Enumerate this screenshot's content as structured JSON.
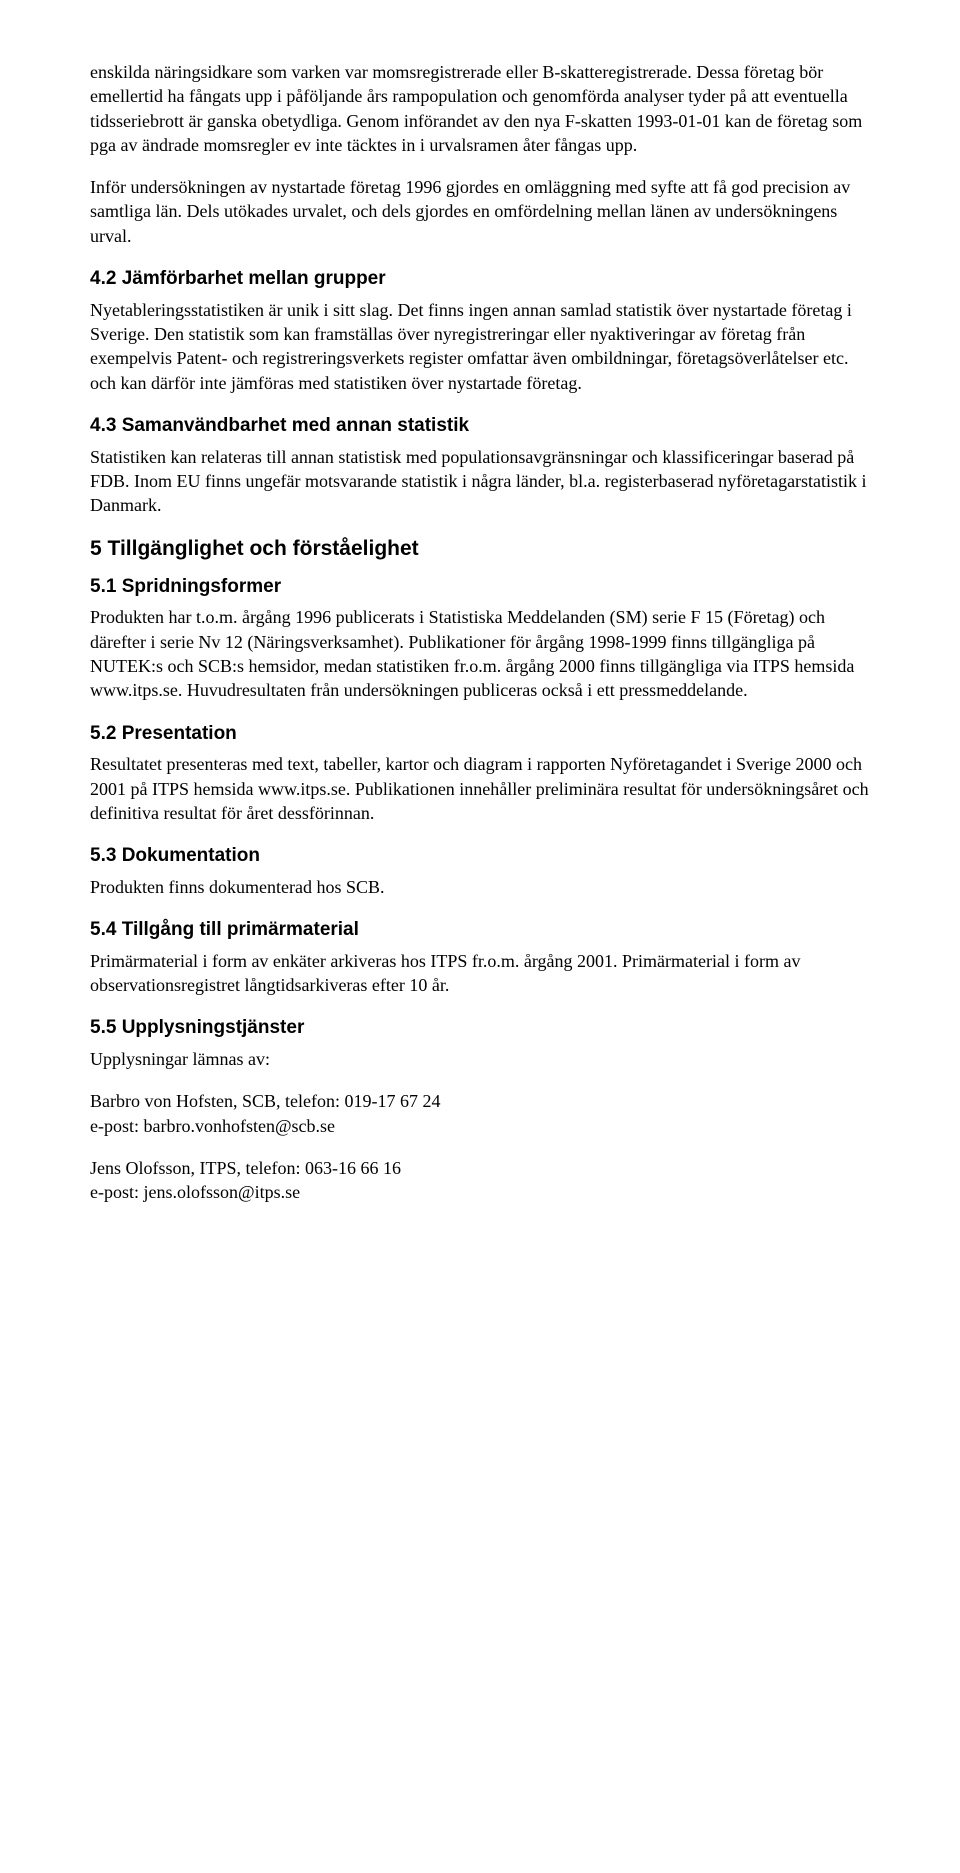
{
  "p1": "enskilda näringsidkare som varken var momsregistrerade eller B-skatteregistrerade. Dessa företag bör emellertid ha fångats upp i påföljande års rampopulation och genomförda analyser tyder på att eventuella tidsseriebrott är ganska obetydliga. Genom införandet av den nya F-skatten 1993-01-01 kan de företag som pga av ändrade momsregler ev inte täcktes in i urvalsramen åter fångas upp.",
  "p2": "Inför undersökningen av nystartade företag 1996 gjordes en omläggning med syfte att få god precision av samtliga län. Dels utökades urvalet, och dels gjordes en omfördelning mellan länen av undersökningens urval.",
  "h42": "4.2 Jämförbarhet mellan grupper",
  "p42": "Nyetableringsstatistiken är unik i sitt slag. Det finns ingen annan samlad statistik över nystartade företag i Sverige. Den statistik som kan framställas över nyregistreringar eller nyaktiveringar av företag från exempelvis Patent- och registreringsverkets register omfattar även ombildningar, företagsöverlåtelser etc. och kan därför inte jämföras med statistiken över nystartade företag.",
  "h43": "4.3 Samanvändbarhet med annan statistik",
  "p43": "Statistiken kan relateras till annan statistisk med populationsavgränsningar och klassificeringar baserad på FDB. Inom EU finns ungefär motsvarande statistik i några länder, bl.a. registerbaserad nyföretagarstatistik i Danmark.",
  "h5": "5 Tillgänglighet och förståelighet",
  "h51": "5.1 Spridningsformer",
  "p51": "Produkten har t.o.m. årgång 1996 publicerats i Statistiska Meddelanden (SM) serie F 15 (Företag) och därefter i serie Nv 12 (Näringsverksamhet). Publikationer för årgång 1998-1999 finns tillgängliga på NUTEK:s och SCB:s hemsidor, medan statistiken fr.o.m. årgång 2000 finns tillgängliga via ITPS hemsida www.itps.se. Huvudresultaten från undersökningen publiceras också i ett pressmeddelande.",
  "h52": "5.2 Presentation",
  "p52": "Resultatet presenteras med text, tabeller, kartor och diagram i rapporten Nyföretagandet i Sverige 2000 och 2001 på ITPS hemsida www.itps.se. Publikationen innehåller preliminära resultat för undersökningsåret och definitiva resultat för året dessförinnan.",
  "h53": "5.3 Dokumentation",
  "p53": "Produkten finns dokumenterad hos SCB.",
  "h54": "5.4 Tillgång till primärmaterial",
  "p54": "Primärmaterial i form av enkäter arkiveras hos ITPS fr.o.m. årgång 2001. Primärmaterial i form av observationsregistret långtidsarkiveras efter 10 år.",
  "h55": "5.5 Upplysningstjänster",
  "p55": "Upplysningar lämnas av:",
  "contact1_line1": "Barbro von Hofsten, SCB, telefon: 019-17 67 24",
  "contact1_line2": "e-post: barbro.vonhofsten@scb.se",
  "contact2_line1": "Jens Olofsson, ITPS, telefon: 063-16 66 16",
  "contact2_line2": "e-post: jens.olofsson@itps.se"
}
